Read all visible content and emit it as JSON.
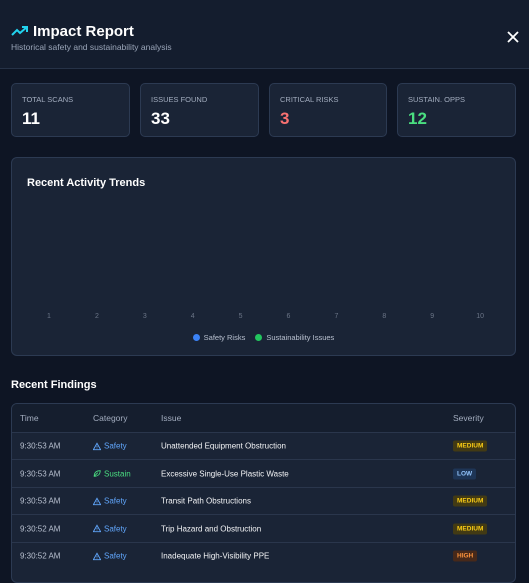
{
  "header": {
    "title": "Impact Report",
    "subtitle": "Historical safety and sustainability analysis"
  },
  "stats": [
    {
      "label": "TOTAL SCANS",
      "value": "11",
      "color": "#ffffff"
    },
    {
      "label": "ISSUES FOUND",
      "value": "33",
      "color": "#ffffff"
    },
    {
      "label": "CRITICAL RISKS",
      "value": "3",
      "color": "#f87171"
    },
    {
      "label": "SUSTAIN. OPPS",
      "value": "12",
      "color": "#4ade80"
    }
  ],
  "trends": {
    "title": "Recent Activity Trends",
    "categories": [
      "1",
      "2",
      "3",
      "4",
      "5",
      "6",
      "7",
      "8",
      "9",
      "10"
    ],
    "series": [
      {
        "name": "Safety Risks",
        "color": "#3b82f6"
      },
      {
        "name": "Sustainability Issues",
        "color": "#22c55e"
      }
    ]
  },
  "findings": {
    "title": "Recent Findings",
    "columns": [
      "Time",
      "Category",
      "Issue",
      "Severity"
    ],
    "rows": [
      {
        "time": "9:30:53 AM",
        "category": "Safety",
        "icon": "alert",
        "category_color": "#60a5fa",
        "issue": "Unattended Equipment Obstruction",
        "severity": "MEDIUM",
        "severity_color": "#facc15",
        "severity_bg": "#423a14"
      },
      {
        "time": "9:30:53 AM",
        "category": "Sustain",
        "icon": "leaf",
        "category_color": "#4ade80",
        "issue": "Excessive Single-Use Plastic Waste",
        "severity": "LOW",
        "severity_color": "#93c5fd",
        "severity_bg": "#1e3556"
      },
      {
        "time": "9:30:53 AM",
        "category": "Safety",
        "icon": "alert",
        "category_color": "#60a5fa",
        "issue": "Transit Path Obstructions",
        "severity": "MEDIUM",
        "severity_color": "#facc15",
        "severity_bg": "#423a14"
      },
      {
        "time": "9:30:52 AM",
        "category": "Safety",
        "icon": "alert",
        "category_color": "#60a5fa",
        "issue": "Trip Hazard and Obstruction",
        "severity": "MEDIUM",
        "severity_color": "#facc15",
        "severity_bg": "#423a14"
      },
      {
        "time": "9:30:52 AM",
        "category": "Safety",
        "icon": "alert",
        "category_color": "#60a5fa",
        "issue": "Inadequate High-Visibility PPE",
        "severity": "HIGH",
        "severity_color": "#fb923c",
        "severity_bg": "#47291a"
      }
    ]
  }
}
